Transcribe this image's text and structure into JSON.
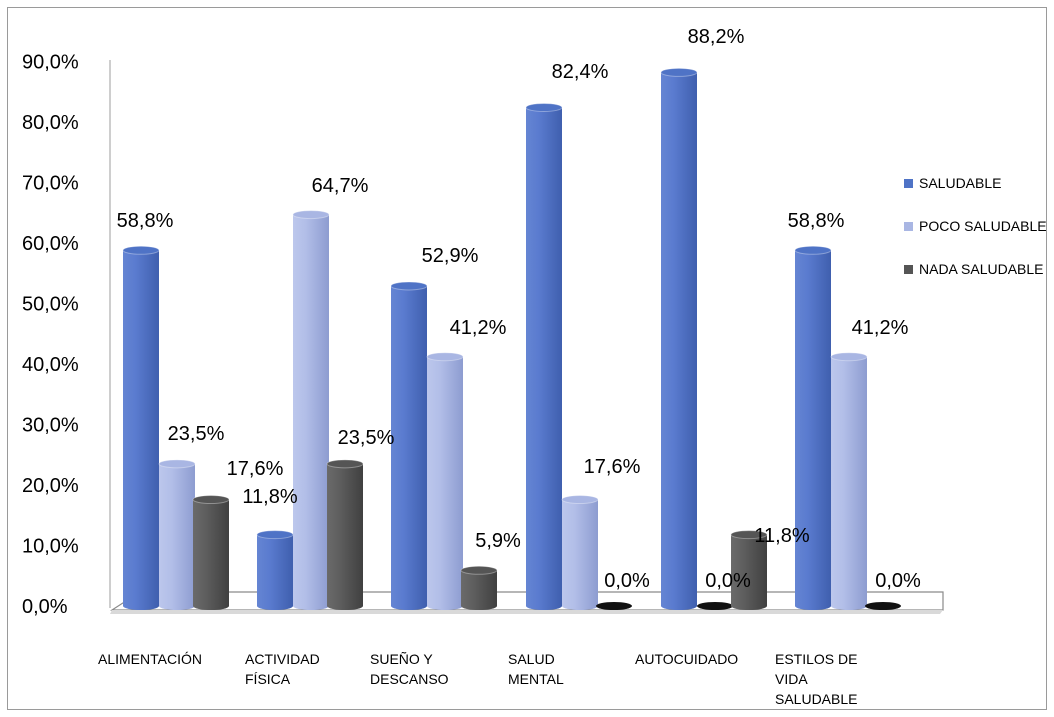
{
  "chart_data": {
    "type": "bar",
    "title": "",
    "xlabel": "",
    "ylabel": "",
    "ylim": [
      0,
      90
    ],
    "yticks": [
      "0,0%",
      "10,0%",
      "20,0%",
      "30,0%",
      "40,0%",
      "50,0%",
      "60,0%",
      "70,0%",
      "80,0%",
      "90,0%"
    ],
    "categories": [
      [
        "ALIMENTACIÓN"
      ],
      [
        "ACTIVIDAD",
        "FÍSICA"
      ],
      [
        "SUEÑO Y",
        "DESCANSO"
      ],
      [
        "SALUD",
        "MENTAL"
      ],
      [
        "AUTOCUIDADO"
      ],
      [
        "ESTILOS DE",
        "VIDA",
        "SALUDABLE"
      ]
    ],
    "series": [
      {
        "name": "SALUDABLE",
        "color": "#4f73c6",
        "values": [
          58.8,
          11.8,
          52.9,
          82.4,
          88.2,
          58.8
        ],
        "labels": [
          "58,8%",
          "11,8%",
          "52,9%",
          "82,4%",
          "88,2%",
          "58,8%"
        ]
      },
      {
        "name": "POCO SALUDABLE",
        "color": "#a9b6e3",
        "values": [
          23.5,
          64.7,
          41.2,
          17.6,
          0.0,
          41.2
        ],
        "labels": [
          "23,5%",
          "64,7%",
          "41,2%",
          "17,6%",
          "0,0%",
          "41,2%"
        ]
      },
      {
        "name": "NADA SALUDABLE",
        "color": "#555555",
        "values": [
          17.6,
          23.5,
          5.9,
          0.0,
          11.8,
          0.0
        ],
        "labels": [
          "17,6%",
          "23,5%",
          "5,9%",
          "0,0%",
          "11,8%",
          "0,0%"
        ]
      }
    ],
    "legend_position": "right",
    "grid": false,
    "style": "3d-cylinder"
  }
}
